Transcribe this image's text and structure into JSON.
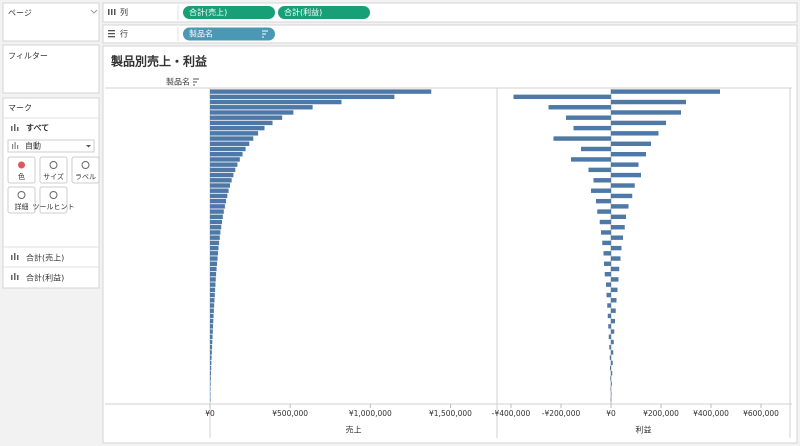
{
  "shelves": {
    "pages": "ページ",
    "filters": "フィルター",
    "columns": {
      "label": "列",
      "pills": [
        "合計(売上)",
        "合計(利益)"
      ]
    },
    "rows": {
      "label": "行",
      "pills": [
        "製品名"
      ]
    }
  },
  "marks": {
    "title": "マーク",
    "all": "すべて",
    "mark_type": "自動",
    "buttons": [
      "色",
      "サイズ",
      "ラベル",
      "詳細",
      "ツールヒント"
    ],
    "fields": [
      "合計(売上)",
      "合計(利益)"
    ]
  },
  "sheet_title": "製品別売上・利益",
  "row_header": "製品名",
  "chart_data": [
    {
      "type": "bar",
      "x_label": "売上",
      "color": "#4e79a7",
      "xlim": [
        0,
        1790000
      ],
      "xticks": [
        {
          "value": 0,
          "label": "¥0"
        },
        {
          "value": 500000,
          "label": "¥500,000"
        },
        {
          "value": 1000000,
          "label": "¥1,000,000"
        },
        {
          "value": 1500000,
          "label": "¥1,500,000"
        }
      ],
      "zero_line": false,
      "values": [
        1380000,
        1150000,
        820000,
        640000,
        520000,
        450000,
        390000,
        340000,
        300000,
        270000,
        245000,
        222000,
        203000,
        186000,
        171000,
        158000,
        146000,
        135000,
        125000,
        116000,
        108000,
        100000,
        93000,
        86000,
        80000,
        75000,
        70000,
        65000,
        61000,
        57000,
        53000,
        50000,
        47000,
        44000,
        41000,
        38000,
        36000,
        34000,
        32000,
        30000,
        28000,
        26000,
        24000,
        22000,
        20500,
        19000,
        17500,
        16000,
        14500,
        13000,
        11500,
        10000,
        8800,
        7600,
        6400,
        5200,
        4000,
        2900,
        1800,
        800
      ]
    },
    {
      "type": "bar",
      "x_label": "利益",
      "color": "#4e79a7",
      "xlim": [
        -456000,
        716000
      ],
      "xticks": [
        {
          "value": -400000,
          "label": "-¥400,000"
        },
        {
          "value": -200000,
          "label": "-¥200,000"
        },
        {
          "value": 0,
          "label": "¥0"
        },
        {
          "value": 200000,
          "label": "¥200,000"
        },
        {
          "value": 400000,
          "label": "¥400,000"
        },
        {
          "value": 600000,
          "label": "¥600,000"
        }
      ],
      "zero_line": true,
      "values": [
        436000,
        -390000,
        300000,
        -250000,
        280000,
        -180000,
        220000,
        -150000,
        190000,
        -230000,
        160000,
        -120000,
        140000,
        -160000,
        110000,
        -90000,
        120000,
        -70000,
        95000,
        -80000,
        85000,
        -60000,
        70000,
        -55000,
        60000,
        -45000,
        55000,
        -40000,
        48000,
        -35000,
        42000,
        -30000,
        38000,
        -28000,
        33000,
        -25000,
        30000,
        -20000,
        26000,
        -18000,
        22000,
        -15000,
        19000,
        -13000,
        16000,
        -11000,
        13000,
        -9000,
        11000,
        -7000,
        9000,
        -5000,
        7000,
        -4000,
        5000,
        -3000,
        3500,
        -2000,
        2000,
        -1000
      ]
    }
  ]
}
